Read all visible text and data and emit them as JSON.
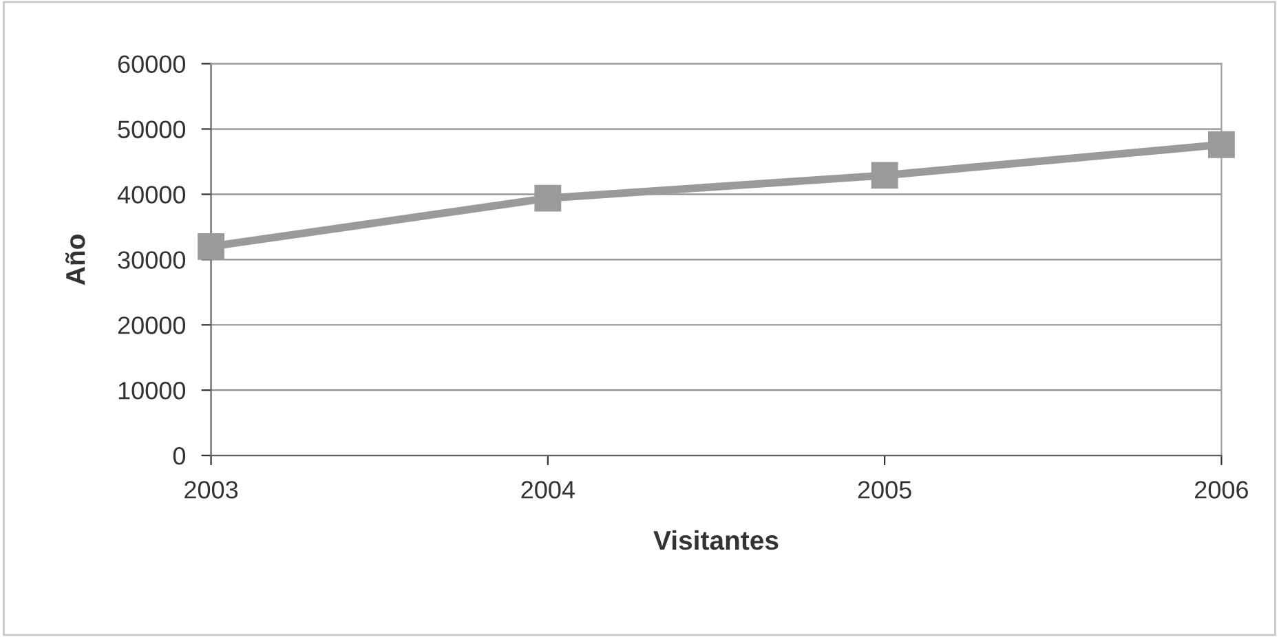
{
  "chart_data": {
    "type": "line",
    "xlabel": "Visitantes",
    "ylabel": "Año",
    "categories": [
      "2003",
      "2004",
      "2005",
      "2006"
    ],
    "series": [
      {
        "color": "#9a9a9a",
        "values": [
          32000,
          39400,
          42900,
          47600
        ]
      }
    ],
    "ylim": [
      0,
      60000
    ],
    "yticks": [
      0,
      10000,
      20000,
      30000,
      40000,
      50000,
      60000
    ],
    "grid": "y",
    "marker": "square",
    "line_style": "solid",
    "legend": false
  }
}
